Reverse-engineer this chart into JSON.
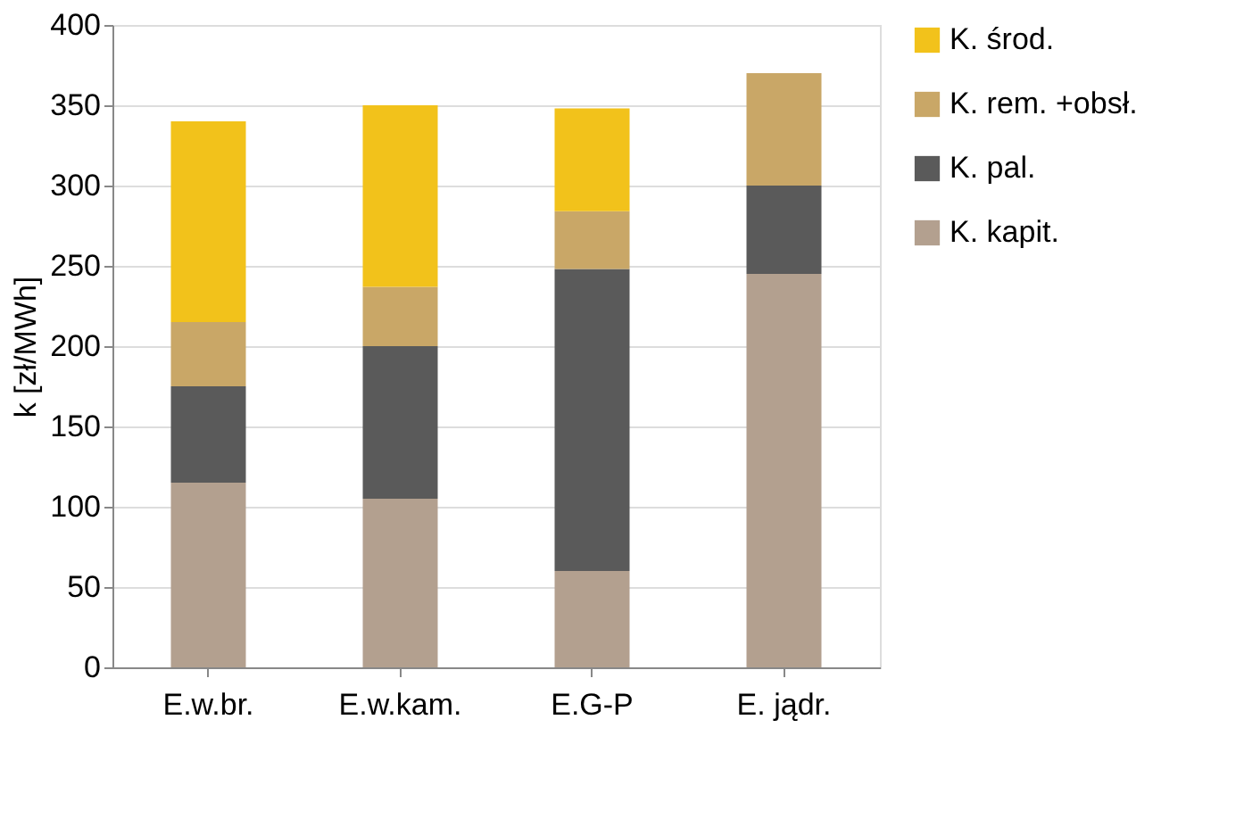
{
  "chart_data": {
    "type": "bar",
    "stacked": true,
    "ylabel": "k [zł/MWh]",
    "categories": [
      "E.w.br.",
      "E.w.kam.",
      "E.G-P",
      "E. jądr."
    ],
    "series": [
      {
        "name": "K. kapit.",
        "color": "#b3a08f",
        "values": [
          115,
          105,
          60,
          245
        ]
      },
      {
        "name": "K. pal.",
        "color": "#5a5a5a",
        "values": [
          60,
          95,
          188,
          55
        ]
      },
      {
        "name": "K. rem. +obsł.",
        "color": "#c9a767",
        "values": [
          40,
          37,
          36,
          70
        ]
      },
      {
        "name": "K. środ.",
        "color": "#f2c21b",
        "values": [
          125,
          113,
          64,
          null
        ]
      }
    ],
    "ylim": [
      0,
      400
    ],
    "yticks": [
      0,
      50,
      100,
      150,
      200,
      250,
      300,
      350,
      400
    ],
    "grid": "y",
    "legend": "right"
  }
}
